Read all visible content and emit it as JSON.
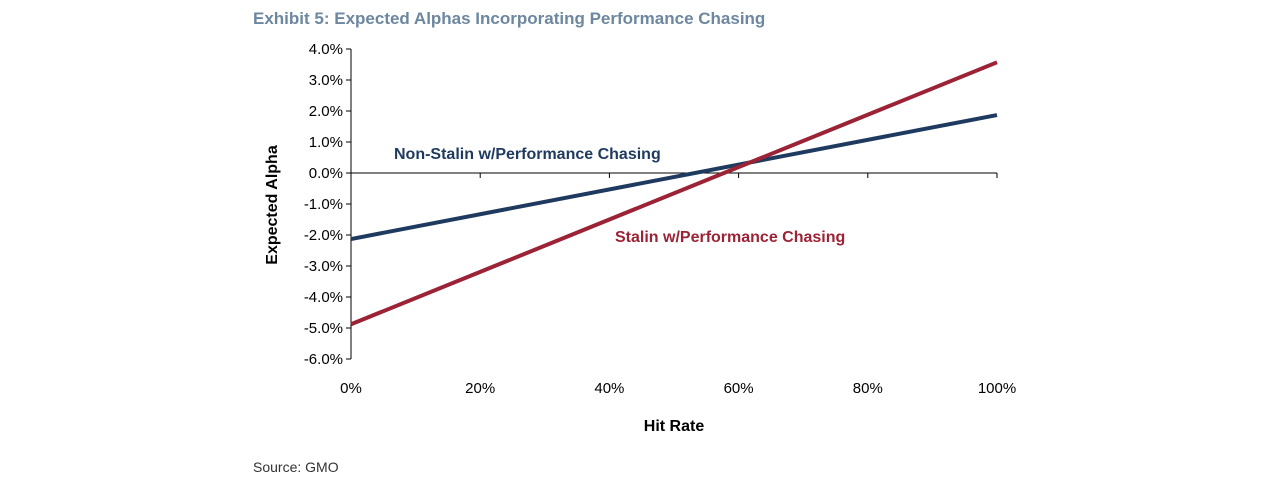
{
  "header": {
    "title": "Exhibit 5: Expected Alphas Incorporating Performance Chasing"
  },
  "footer": {
    "source": "Source: GMO"
  },
  "chart_data": {
    "type": "line",
    "title": "Exhibit 5: Expected Alphas Incorporating Performance Chasing",
    "xlabel": "Hit Rate",
    "ylabel": "Expected Alpha",
    "xlim": [
      0,
      1
    ],
    "ylim": [
      -0.06,
      0.04
    ],
    "x_ticks": [
      0,
      0.2,
      0.4,
      0.6,
      0.8,
      1.0
    ],
    "x_tick_labels": [
      "0%",
      "20%",
      "40%",
      "60%",
      "80%",
      "100%"
    ],
    "y_ticks": [
      0.04,
      0.03,
      0.02,
      0.01,
      0.0,
      -0.01,
      -0.02,
      -0.03,
      -0.04,
      -0.05,
      -0.06
    ],
    "y_tick_labels": [
      "4.0%",
      "3.0%",
      "2.0%",
      "1.0%",
      "0.0%",
      "-1.0%",
      "-2.0%",
      "-3.0%",
      "-4.0%",
      "-5.0%",
      "-6.0%"
    ],
    "grid": false,
    "legend": "none (series labeled inline)",
    "series": [
      {
        "name": "Non-Stalin w/Performance Chasing",
        "color": "#1f3a5f",
        "x": [
          0,
          1.0
        ],
        "y": [
          -0.0213,
          0.0187
        ]
      },
      {
        "name": "Stalin w/Performance Chasing",
        "color": "#9b2335",
        "x": [
          0,
          1.0
        ],
        "y": [
          -0.0488,
          0.0357
        ]
      }
    ]
  }
}
